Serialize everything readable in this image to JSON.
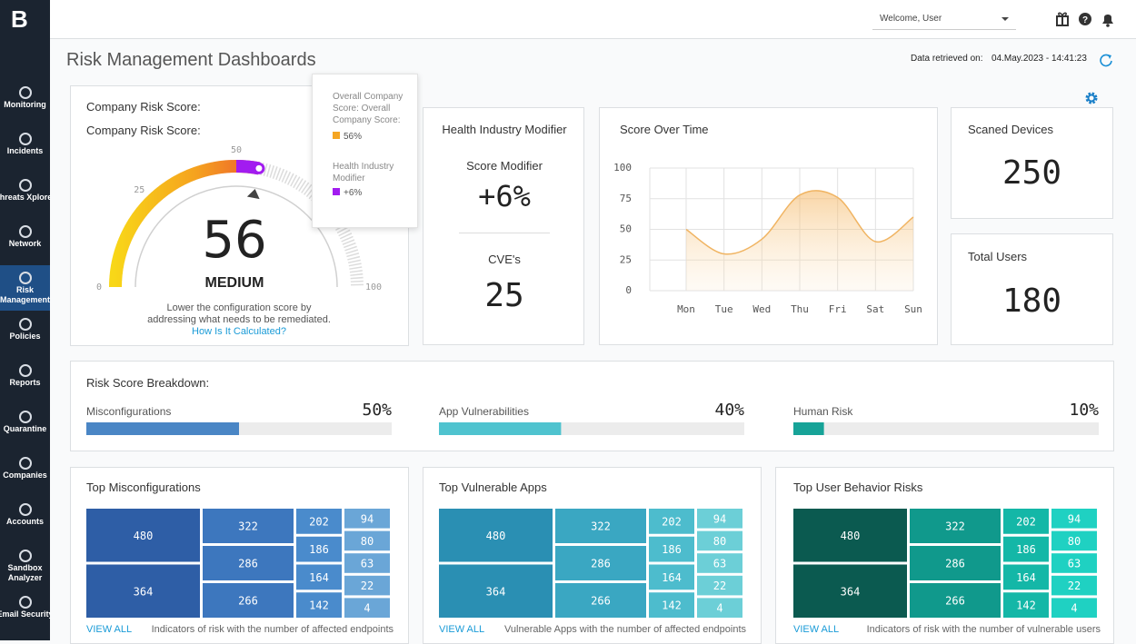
{
  "sidebar": {
    "logo": "B",
    "items": [
      {
        "label": "Monitoring"
      },
      {
        "label": "Incidents"
      },
      {
        "label": "Threats Xplorer"
      },
      {
        "label": "Network"
      },
      {
        "label": "Risk Management",
        "active": true
      },
      {
        "label": "Policies"
      },
      {
        "label": "Reports"
      },
      {
        "label": "Quarantine"
      },
      {
        "label": "Companies"
      },
      {
        "label": "Accounts"
      },
      {
        "label": "Sandbox Analyzer"
      },
      {
        "label": "Email Security"
      }
    ]
  },
  "header": {
    "user_menu": "Welcome, User"
  },
  "page": {
    "title": "Risk Management Dashboards",
    "retrieved_label": "Data retrieved on:",
    "retrieved_at": "04.May.2023 - 14:41:23"
  },
  "company_risk": {
    "heading": "Company Risk Score:",
    "subheading": "Company Risk Score:",
    "score": 56,
    "rating": "MEDIUM",
    "gauge": {
      "lim": [
        0,
        100
      ],
      "ticks": [
        0,
        25,
        50,
        100
      ]
    },
    "note": "Lower the configuration score by addressing what needs to be remediated.",
    "link": "How Is It Calculated?",
    "tooltip": {
      "overall_name": "Overall Company Score: Overall Company Score:",
      "overall": {
        "value": 56,
        "label": "56%"
      },
      "overall_color": "#f5a623",
      "modifier_name": "Health Industry Modifier",
      "modifier": {
        "value": 6,
        "label": "+6%"
      },
      "modifier_color": "#a21cf0"
    }
  },
  "health_modifier": {
    "title": "Health Industry Modifier",
    "score_label": "Score Modifier",
    "score": {
      "value": 6,
      "label": "+6%"
    },
    "cve_label": "CVE's",
    "cves": 25
  },
  "score_over_time": {
    "type": "line",
    "title": "Score Over Time",
    "categories": [
      "Mon",
      "Tue",
      "Wed",
      "Thu",
      "Fri",
      "Sat",
      "Sun"
    ],
    "values": [
      50,
      30,
      42,
      78,
      76,
      40,
      60
    ],
    "color": "#f0b462",
    "ylim": [
      0,
      100
    ],
    "yticks": [
      0,
      25,
      50,
      75,
      100
    ],
    "grid": true
  },
  "devices": {
    "title": "Scaned Devices",
    "value": 250
  },
  "users": {
    "title": "Total Users",
    "value": 180
  },
  "breakdown": {
    "title": "Risk Score Breakdown:",
    "scale": [
      0,
      100
    ],
    "items": [
      {
        "name": "Misconfigurations",
        "value": 50,
        "label": "50%",
        "color": "#4a86c5"
      },
      {
        "name": "App Vulnerabilities",
        "value": 40,
        "label": "40%",
        "color": "#4fc3cf"
      },
      {
        "name": "Human Risk",
        "value": 10,
        "label": "10%",
        "color": "#17a398"
      }
    ]
  },
  "treemaps": [
    {
      "title": "Top Misconfigurations",
      "values": [
        480,
        364,
        322,
        286,
        266,
        202,
        186,
        164,
        142,
        94,
        80,
        63,
        22,
        4
      ],
      "colors": [
        "#2e5ea6",
        "#3d77be",
        "#4a8bcc",
        "#6aa6d7"
      ],
      "link": "VIEW ALL",
      "note": "Indicators of risk with the number of affected endpoints"
    },
    {
      "title": "Top Vulnerable Apps",
      "values": [
        480,
        364,
        322,
        286,
        266,
        202,
        186,
        164,
        142,
        94,
        80,
        63,
        22,
        4
      ],
      "colors": [
        "#2a8fb3",
        "#3aa7c2",
        "#4dbccd",
        "#6ccfd7"
      ],
      "link": "VIEW ALL",
      "note": "Vulnerable Apps with the number of affected endpoints"
    },
    {
      "title": "Top User Behavior Risks",
      "values": [
        480,
        364,
        322,
        286,
        266,
        202,
        186,
        164,
        142,
        94,
        80,
        63,
        22,
        4
      ],
      "colors": [
        "#0b5a50",
        "#10998c",
        "#14b7a7",
        "#1fd1c2"
      ],
      "link": "VIEW ALL",
      "note": "Indicators of risk with the number of vulnerable users"
    }
  ]
}
